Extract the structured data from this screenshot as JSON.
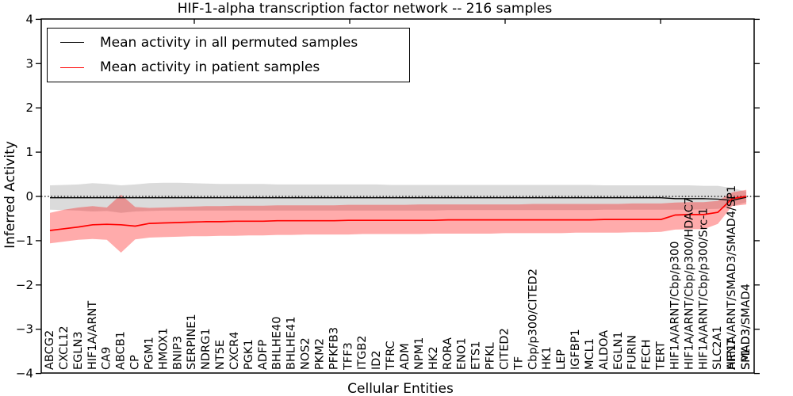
{
  "figure": {
    "background": "#ffffff",
    "axis_color": "#000000",
    "plot_area_note": "single axes, no grid, classic style"
  },
  "chart_data": {
    "type": "line",
    "title": "HIF-1-alpha transcription factor network -- 216 samples",
    "xlabel": "Cellular Entities",
    "ylabel": "Inferred Activity",
    "ylim": [
      -4,
      4
    ],
    "yticks": [
      4,
      3,
      2,
      1,
      0,
      -1,
      -2,
      -3,
      -4
    ],
    "grid": false,
    "legend_position": "upper left",
    "zero_line": {
      "style": "dotted",
      "color": "#000000",
      "y": 0
    },
    "categories": [
      "ABCG2",
      "CXCL12",
      "EGLN3",
      "HIF1A/ARNT",
      "CA9",
      "ABCB1",
      "CP",
      "PGM1",
      "HMOX1",
      "BNIP3",
      "SERPINE1",
      "NDRG1",
      "NT5E",
      "CXCR4",
      "PGK1",
      "ADFP",
      "BHLHE40",
      "BHLHE41",
      "NOS2",
      "PKM2",
      "PFKFB3",
      "TFF3",
      "ITGB2",
      "ID2",
      "TFRC",
      "ADM",
      "NPM1",
      "HK2",
      "RORA",
      "ENO1",
      "ETS1",
      "PFKL",
      "CITED2",
      "TF",
      "Cbp/p300/CITED2",
      "HK1",
      "LEP",
      "IGFBP1",
      "MCL1",
      "ALDOA",
      "EGLN1",
      "FURIN",
      "FECH",
      "TERT",
      "HIF1A/ARNT/Cbp/p300",
      "HIF1A/ARNT/Cbp/p300/HDAC7",
      "HIF1A/ARNT/Cbp/p300/Src-1",
      "SLC2A1",
      "HIF1A/ARNT/SMAD3/SMAD4/SP1",
      "SMAD3/SMAD4"
    ],
    "extra_overlapping_labels": [
      {
        "index": 48,
        "text": "HIF1A"
      },
      {
        "index": 48,
        "text": "ARNT"
      },
      {
        "index": 49,
        "text": "SP1"
      },
      {
        "index": 49,
        "text": "SMAD3"
      }
    ],
    "series": [
      {
        "name": "Mean activity in all permuted samples",
        "color": "#000000",
        "line_width": 1.3,
        "band_color": "rgba(0,0,0,0.14)",
        "values": [
          -0.03,
          -0.03,
          -0.03,
          -0.03,
          -0.03,
          -0.03,
          -0.03,
          -0.03,
          -0.03,
          -0.03,
          -0.03,
          -0.03,
          -0.03,
          -0.03,
          -0.03,
          -0.03,
          -0.03,
          -0.03,
          -0.03,
          -0.03,
          -0.03,
          -0.03,
          -0.03,
          -0.03,
          -0.03,
          -0.03,
          -0.03,
          -0.03,
          -0.03,
          -0.03,
          -0.03,
          -0.03,
          -0.03,
          -0.03,
          -0.03,
          -0.03,
          -0.03,
          -0.03,
          -0.03,
          -0.03,
          -0.03,
          -0.03,
          -0.03,
          -0.03,
          -0.05,
          -0.05,
          -0.05,
          -0.06,
          -0.09,
          -0.02
        ],
        "band_upper": [
          0.25,
          0.26,
          0.27,
          0.3,
          0.28,
          0.25,
          0.27,
          0.3,
          0.31,
          0.31,
          0.3,
          0.29,
          0.28,
          0.28,
          0.28,
          0.28,
          0.27,
          0.27,
          0.27,
          0.27,
          0.27,
          0.27,
          0.27,
          0.27,
          0.26,
          0.26,
          0.26,
          0.26,
          0.26,
          0.26,
          0.26,
          0.26,
          0.26,
          0.26,
          0.26,
          0.26,
          0.26,
          0.26,
          0.26,
          0.25,
          0.25,
          0.25,
          0.25,
          0.25,
          0.25,
          0.25,
          0.24,
          0.24,
          0.19,
          0.11
        ],
        "band_lower": [
          -0.3,
          -0.31,
          -0.32,
          -0.34,
          -0.33,
          -0.37,
          -0.34,
          -0.33,
          -0.32,
          -0.32,
          -0.32,
          -0.32,
          -0.32,
          -0.32,
          -0.32,
          -0.32,
          -0.32,
          -0.32,
          -0.32,
          -0.32,
          -0.32,
          -0.32,
          -0.32,
          -0.32,
          -0.32,
          -0.32,
          -0.32,
          -0.32,
          -0.31,
          -0.31,
          -0.31,
          -0.31,
          -0.31,
          -0.31,
          -0.31,
          -0.31,
          -0.31,
          -0.31,
          -0.31,
          -0.3,
          -0.3,
          -0.3,
          -0.3,
          -0.3,
          -0.3,
          -0.3,
          -0.29,
          -0.28,
          -0.22,
          -0.13
        ]
      },
      {
        "name": "Mean activity in patient samples",
        "color": "#ff0000",
        "line_width": 1.7,
        "band_color": "rgba(255,0,0,0.33)",
        "values": [
          -0.77,
          -0.73,
          -0.69,
          -0.64,
          -0.63,
          -0.64,
          -0.67,
          -0.61,
          -0.6,
          -0.59,
          -0.58,
          -0.57,
          -0.57,
          -0.56,
          -0.56,
          -0.56,
          -0.55,
          -0.55,
          -0.55,
          -0.55,
          -0.55,
          -0.54,
          -0.54,
          -0.54,
          -0.54,
          -0.54,
          -0.54,
          -0.54,
          -0.53,
          -0.53,
          -0.53,
          -0.53,
          -0.53,
          -0.53,
          -0.53,
          -0.53,
          -0.53,
          -0.53,
          -0.53,
          -0.52,
          -0.52,
          -0.52,
          -0.52,
          -0.52,
          -0.42,
          -0.41,
          -0.41,
          -0.36,
          -0.05,
          0.0
        ],
        "band_upper": [
          -0.37,
          -0.3,
          -0.25,
          -0.22,
          -0.25,
          0.04,
          -0.24,
          -0.26,
          -0.25,
          -0.24,
          -0.23,
          -0.22,
          -0.22,
          -0.21,
          -0.21,
          -0.21,
          -0.2,
          -0.2,
          -0.2,
          -0.2,
          -0.2,
          -0.19,
          -0.19,
          -0.19,
          -0.19,
          -0.19,
          -0.18,
          -0.18,
          -0.18,
          -0.18,
          -0.18,
          -0.18,
          -0.18,
          -0.18,
          -0.17,
          -0.17,
          -0.17,
          -0.17,
          -0.17,
          -0.17,
          -0.17,
          -0.16,
          -0.16,
          -0.16,
          -0.14,
          -0.13,
          -0.13,
          -0.1,
          0.09,
          0.15
        ],
        "band_lower": [
          -1.06,
          -1.02,
          -0.98,
          -0.96,
          -0.98,
          -1.27,
          -0.97,
          -0.93,
          -0.92,
          -0.91,
          -0.9,
          -0.9,
          -0.89,
          -0.89,
          -0.88,
          -0.88,
          -0.87,
          -0.87,
          -0.86,
          -0.86,
          -0.86,
          -0.86,
          -0.85,
          -0.85,
          -0.85,
          -0.85,
          -0.85,
          -0.84,
          -0.84,
          -0.84,
          -0.84,
          -0.84,
          -0.83,
          -0.83,
          -0.83,
          -0.83,
          -0.83,
          -0.82,
          -0.82,
          -0.82,
          -0.82,
          -0.81,
          -0.81,
          -0.8,
          -0.75,
          -0.74,
          -0.74,
          -0.62,
          -0.22,
          -0.18
        ]
      }
    ]
  }
}
